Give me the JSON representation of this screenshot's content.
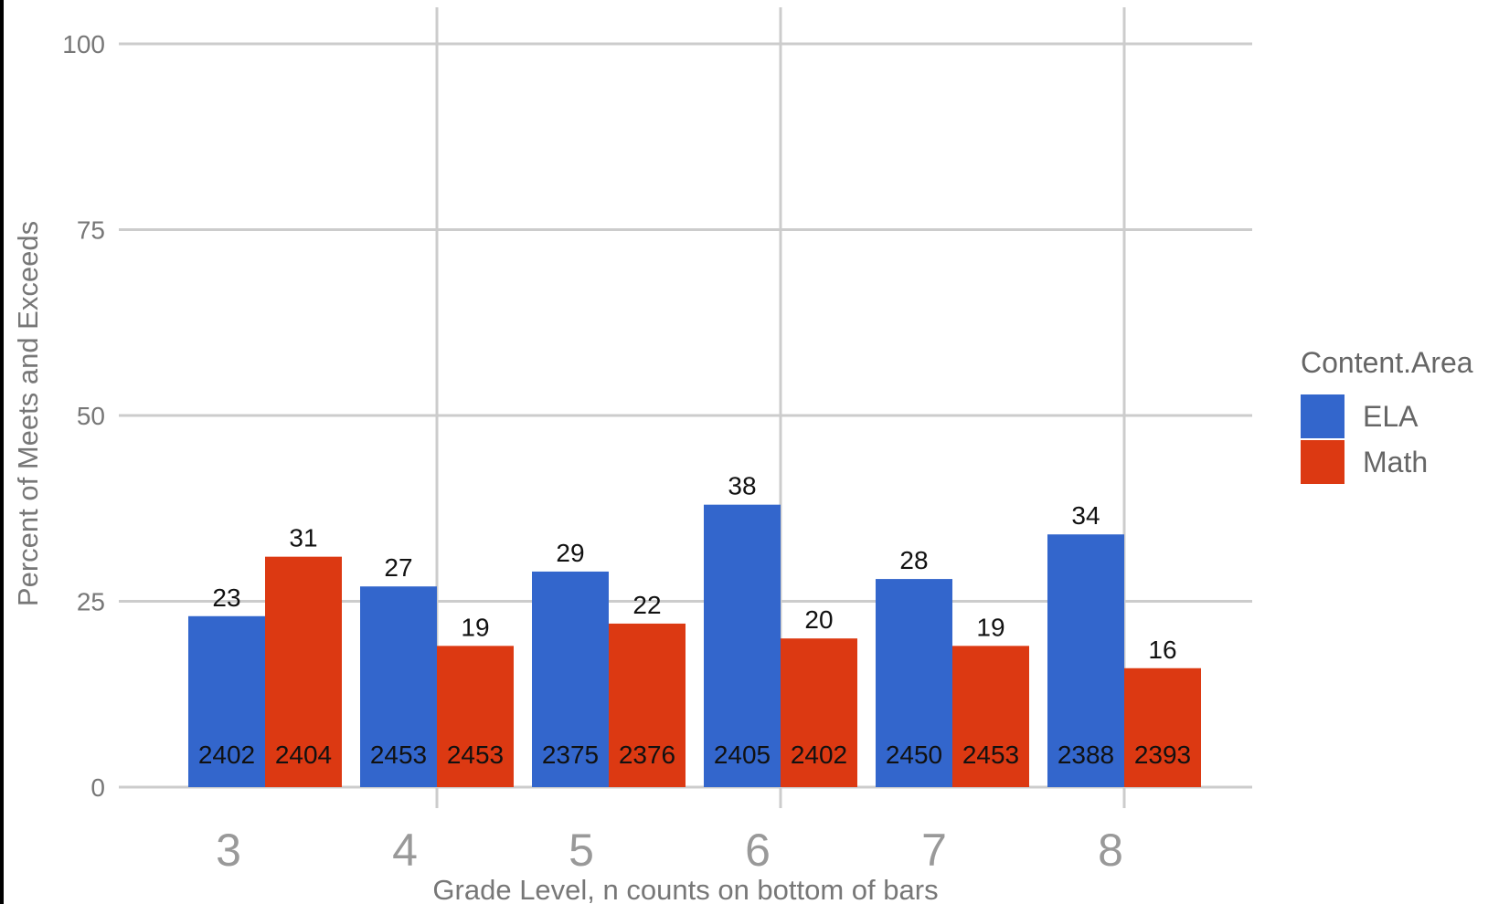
{
  "chart_data": {
    "type": "bar",
    "categories": [
      "3",
      "4",
      "5",
      "6",
      "7",
      "8"
    ],
    "series": [
      {
        "name": "ELA",
        "color": "#3366cc",
        "values": [
          23,
          27,
          29,
          38,
          28,
          34
        ],
        "n_counts": [
          2402,
          2453,
          2375,
          2405,
          2450,
          2388
        ]
      },
      {
        "name": "Math",
        "color": "#dc3912",
        "values": [
          31,
          19,
          22,
          20,
          19,
          16
        ],
        "n_counts": [
          2404,
          2453,
          2376,
          2402,
          2453,
          2393
        ]
      }
    ],
    "title": "",
    "xlabel": "Grade Level, n counts on bottom of bars",
    "ylabel": "Percent of Meets and Exceeds",
    "ylim": [
      0,
      100
    ],
    "yticks": [
      0,
      25,
      50,
      75,
      100
    ],
    "grid": true,
    "legend": {
      "title": "Content.Area",
      "placement": "right"
    }
  }
}
